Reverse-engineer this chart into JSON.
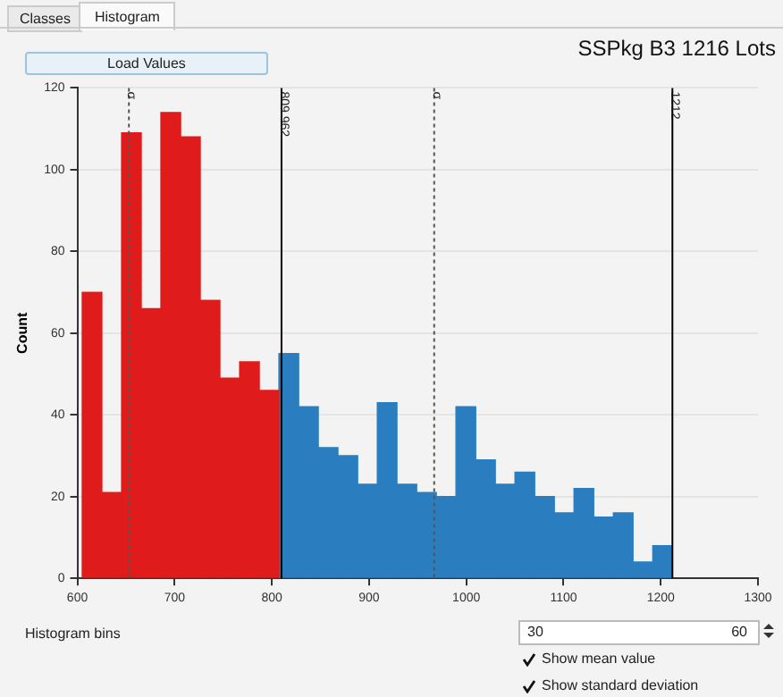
{
  "chart_data": {
    "type": "histogram",
    "title": "SSPkg B3 1216 Lots",
    "ylabel": "Count",
    "bins": [
      605.0,
      625.2,
      645.5,
      665.7,
      685.9,
      706.2,
      726.4,
      746.6,
      766.9,
      787.1,
      807.3,
      827.6,
      847.8,
      868.0,
      888.3,
      908.5,
      928.7,
      949.0,
      969.2,
      989.4,
      1009.7,
      1029.9,
      1050.1,
      1070.4,
      1090.6,
      1110.8,
      1131.1,
      1151.3,
      1171.5,
      1191.8,
      1212.0
    ],
    "values": [
      70,
      21,
      109,
      66,
      114,
      108,
      68,
      49,
      53,
      46,
      55,
      42,
      32,
      30,
      23,
      43,
      23,
      21,
      20,
      42,
      29,
      23,
      26,
      20,
      16,
      22,
      15,
      16,
      4,
      8
    ],
    "colors": [
      "#e01b1b",
      "#e01b1b",
      "#e01b1b",
      "#e01b1b",
      "#e01b1b",
      "#e01b1b",
      "#e01b1b",
      "#e01b1b",
      "#e01b1b",
      "#e01b1b",
      "#2a7ec0",
      "#2a7ec0",
      "#2a7ec0",
      "#2a7ec0",
      "#2a7ec0",
      "#2a7ec0",
      "#2a7ec0",
      "#2a7ec0",
      "#2a7ec0",
      "#2a7ec0",
      "#2a7ec0",
      "#2a7ec0",
      "#2a7ec0",
      "#2a7ec0",
      "#2a7ec0",
      "#2a7ec0",
      "#2a7ec0",
      "#2a7ec0",
      "#2a7ec0",
      "#2a7ec0"
    ],
    "xlim": [
      600,
      1300
    ],
    "xticks": [
      600,
      700,
      800,
      900,
      1000,
      1100,
      1200,
      1300
    ],
    "ylim": [
      0,
      120
    ],
    "yticks": [
      0,
      20,
      40,
      60,
      80,
      100,
      120
    ],
    "grid": "y",
    "ref_lines": [
      {
        "axis": "x",
        "value": 653,
        "label": "σ",
        "line_style": "dotted",
        "color": "#555555"
      },
      {
        "axis": "x",
        "value": 809.962,
        "label": "809.962",
        "line_style": "solid",
        "color": "#000000"
      },
      {
        "axis": "x",
        "value": 967,
        "label": "σ",
        "line_style": "dotted",
        "color": "#555555"
      },
      {
        "axis": "x",
        "value": 1212,
        "label": "1212",
        "line_style": "solid",
        "color": "#000000"
      }
    ],
    "annotations": [
      "Classes",
      "Histogram",
      "Load Values",
      "Histogram bins",
      "30",
      "60",
      "Show mean value",
      "Show standard deviation"
    ]
  }
}
